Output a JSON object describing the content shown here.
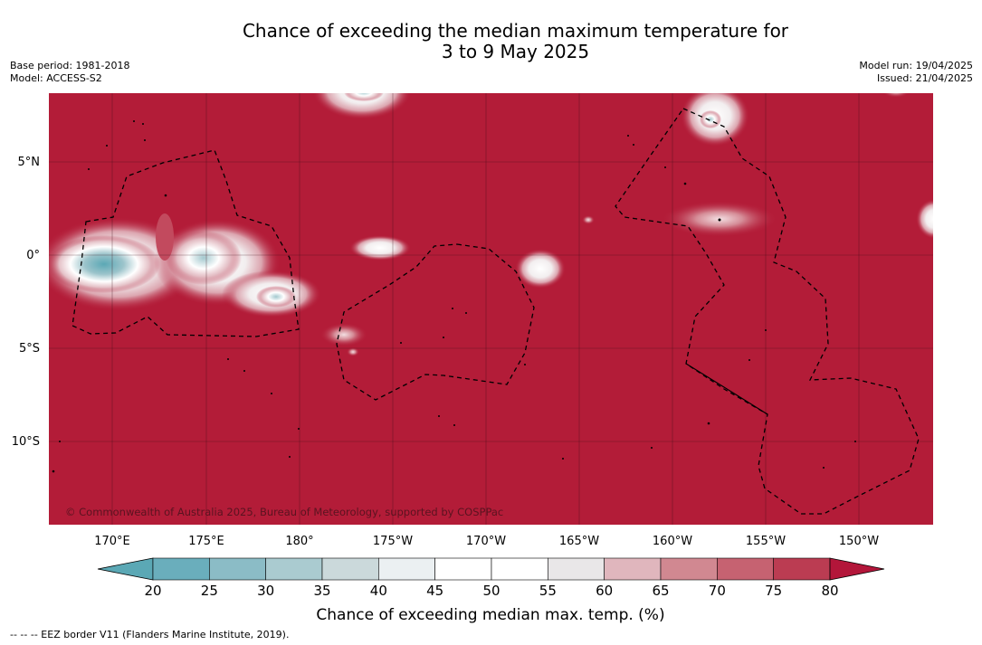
{
  "title": {
    "line1": "Chance of exceeding the median maximum temperature for",
    "line2": "3 to 9 May 2025"
  },
  "meta_left": {
    "base_period": "Base period: 1981-2018",
    "model": "Model: ACCESS-S2"
  },
  "meta_right": {
    "model_run": "Model run: 19/04/2025",
    "issued": "Issued: 21/04/2025"
  },
  "map": {
    "background_color": "#b31c38",
    "copyright": "© Commonwealth of Australia 2025, Bureau of Meteorology, supported by COSPPac",
    "lat_labels": [
      "5°N",
      "0°",
      "5°S",
      "10°S"
    ],
    "lon_labels": [
      "170°E",
      "175°E",
      "180°",
      "175°W",
      "170°W",
      "165°W",
      "160°W",
      "155°W",
      "150°W"
    ],
    "lon_values": [
      170,
      175,
      180,
      -175,
      -170,
      -165,
      -160,
      -155,
      -150
    ],
    "lat_values": [
      5,
      0,
      -5,
      -10
    ]
  },
  "colorbar": {
    "title": "Chance of exceeding median max. temp. (%)",
    "ticks": [
      "20",
      "25",
      "30",
      "35",
      "40",
      "45",
      "50",
      "55",
      "60",
      "65",
      "70",
      "75",
      "80"
    ],
    "low_extend_color": "#5ba8b5",
    "high_extend_color": "#b3163a",
    "bin_colors": [
      "#6aaebc",
      "#8bbcc6",
      "#aacbd0",
      "#cbd9db",
      "#ebf0f2",
      "#ffffff",
      "#ffffff",
      "#e9e7e8",
      "#e0b6bd",
      "#d18891",
      "#c66271",
      "#bb3c52"
    ]
  },
  "footer": "--  --  -- EEZ border V11 (Flanders Marine Institute, 2019)."
}
